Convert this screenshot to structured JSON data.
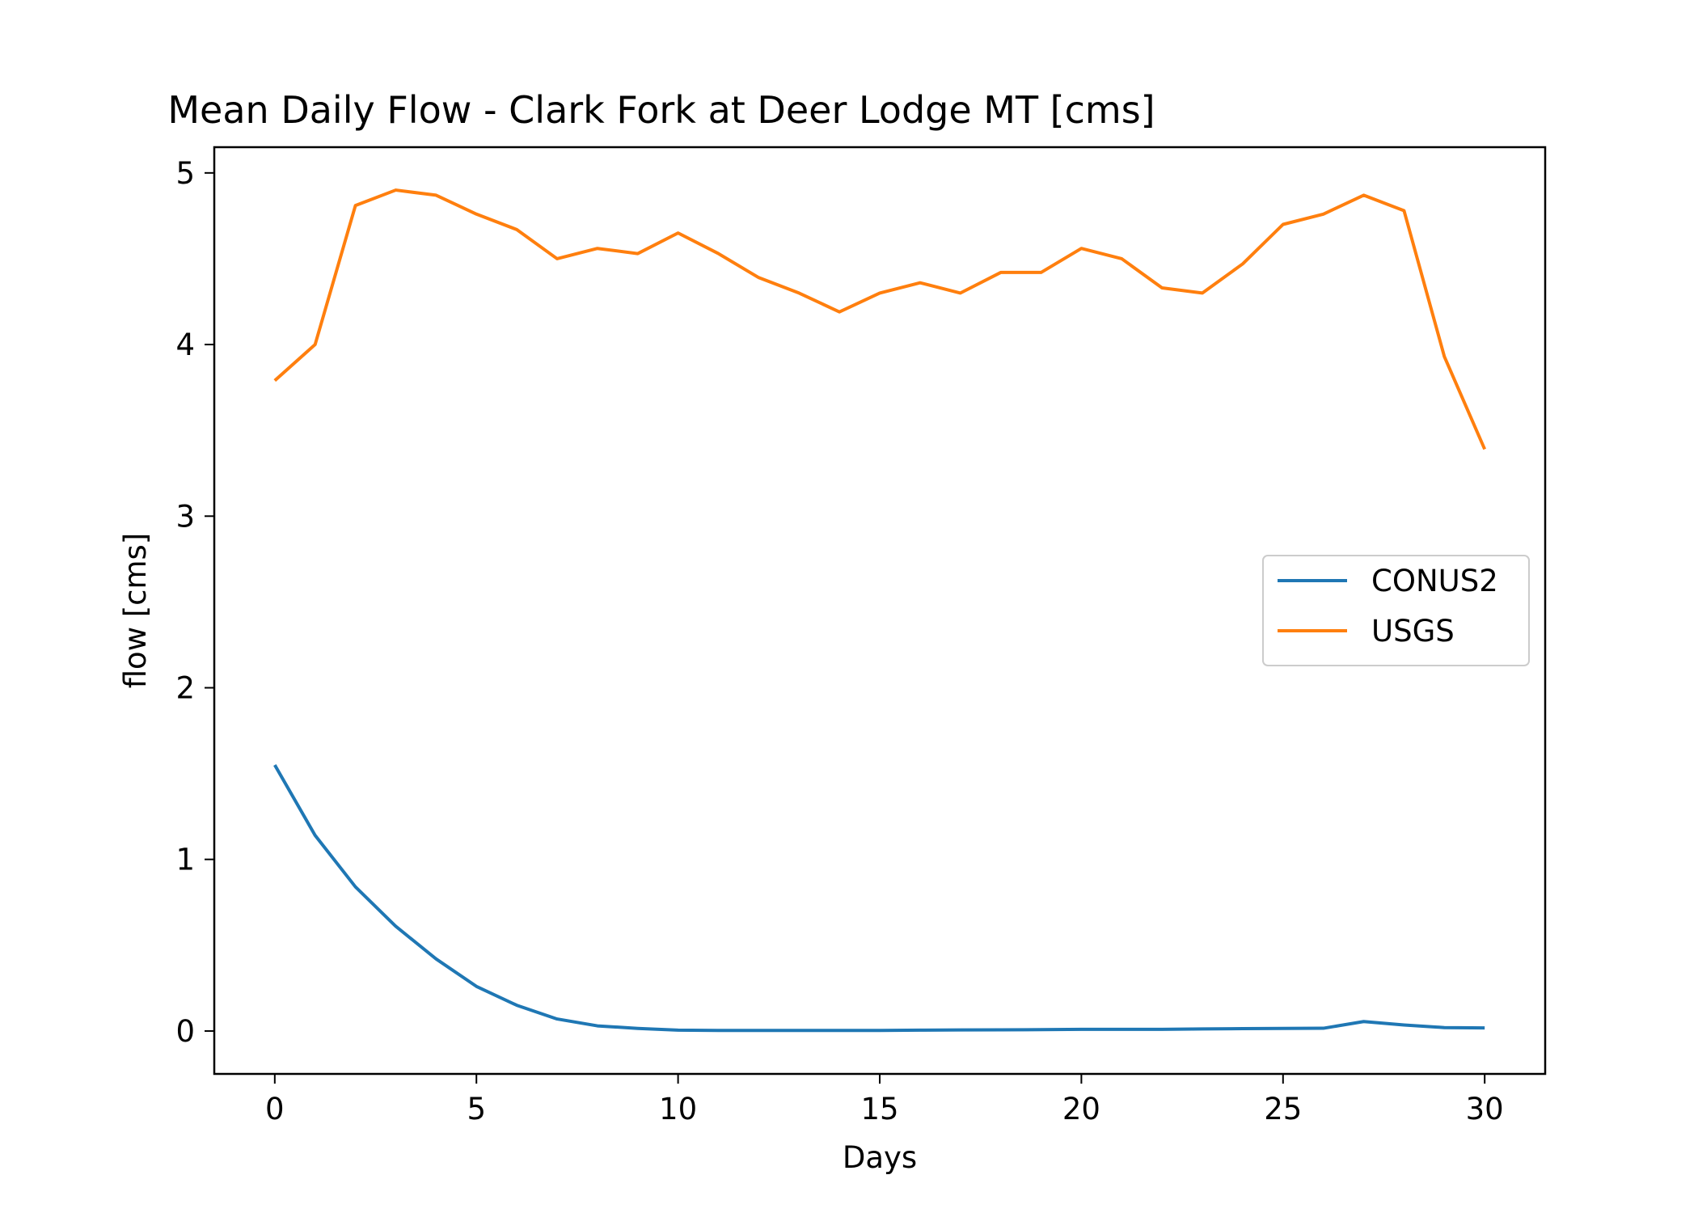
{
  "chart_data": {
    "type": "line",
    "title": "Mean Daily Flow - Clark Fork at Deer Lodge MT [cms]",
    "xlabel": "Days",
    "ylabel": "flow [cms]",
    "xlim": [
      -1.5,
      31.5
    ],
    "ylim": [
      -0.25,
      5.15
    ],
    "xticks": [
      0,
      5,
      10,
      15,
      20,
      25,
      30
    ],
    "yticks": [
      0,
      1,
      2,
      3,
      4,
      5
    ],
    "grid": false,
    "legend_position": "center-right",
    "x": [
      0,
      1,
      2,
      3,
      4,
      5,
      6,
      7,
      8,
      9,
      10,
      11,
      12,
      13,
      14,
      15,
      16,
      17,
      18,
      19,
      20,
      21,
      22,
      23,
      24,
      25,
      26,
      27,
      28,
      29,
      30
    ],
    "series": [
      {
        "name": "CONUS2",
        "color": "#1f77b4",
        "values": [
          1.55,
          1.14,
          0.84,
          0.61,
          0.42,
          0.26,
          0.15,
          0.07,
          0.03,
          0.015,
          0.005,
          0.003,
          0.003,
          0.003,
          0.003,
          0.003,
          0.005,
          0.006,
          0.007,
          0.008,
          0.01,
          0.01,
          0.01,
          0.012,
          0.014,
          0.015,
          0.016,
          0.055,
          0.035,
          0.02,
          0.018
        ]
      },
      {
        "name": "USGS",
        "color": "#ff7f0e",
        "values": [
          3.79,
          4.0,
          4.81,
          4.9,
          4.87,
          4.76,
          4.67,
          4.5,
          4.56,
          4.53,
          4.65,
          4.53,
          4.39,
          4.3,
          4.19,
          4.3,
          4.36,
          4.3,
          4.42,
          4.42,
          4.56,
          4.5,
          4.33,
          4.3,
          4.47,
          4.7,
          4.76,
          4.87,
          4.78,
          3.93,
          3.39
        ]
      }
    ]
  }
}
